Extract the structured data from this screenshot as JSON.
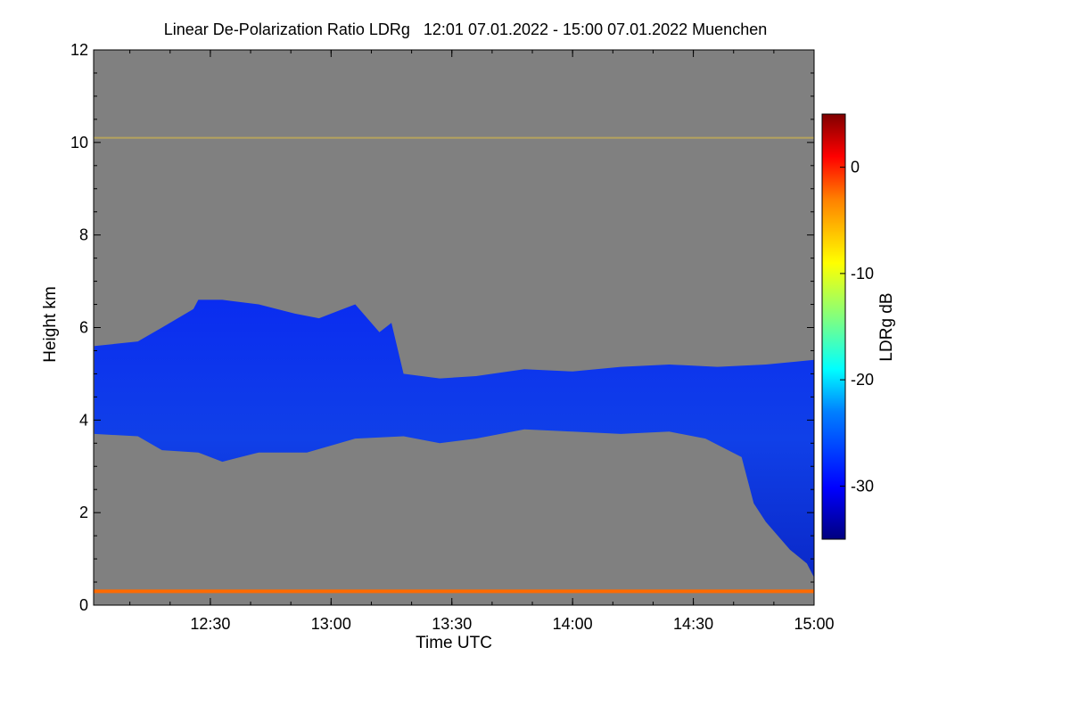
{
  "chart_data": {
    "type": "heatmap",
    "title": "Linear De-Polarization Ratio LDRg   12:01 07.01.2022 - 15:00 07.01.2022 Muenchen",
    "xlabel": "Time UTC",
    "ylabel": "Height km",
    "x_range_hours": [
      12.0167,
      15.0
    ],
    "ylim": [
      0,
      12
    ],
    "x_ticks": [
      {
        "hour": 12.5,
        "label": "12:30"
      },
      {
        "hour": 13.0,
        "label": "13:00"
      },
      {
        "hour": 13.5,
        "label": "13:30"
      },
      {
        "hour": 14.0,
        "label": "14:00"
      },
      {
        "hour": 14.5,
        "label": "14:30"
      },
      {
        "hour": 15.0,
        "label": "15:00"
      }
    ],
    "y_ticks": [
      {
        "value": 0,
        "label": "0"
      },
      {
        "value": 2,
        "label": "2"
      },
      {
        "value": 4,
        "label": "4"
      },
      {
        "value": 6,
        "label": "6"
      },
      {
        "value": 8,
        "label": "8"
      },
      {
        "value": 10,
        "label": "10"
      },
      {
        "value": 12,
        "label": "12"
      }
    ],
    "colorbar": {
      "label": "LDRg dB",
      "range": [
        -35,
        5
      ],
      "ticks": [
        {
          "value": 0,
          "label": "0"
        },
        {
          "value": -10,
          "label": "-10"
        },
        {
          "value": -20,
          "label": "-20"
        },
        {
          "value": -30,
          "label": "-30"
        }
      ]
    },
    "no_signal_color": "#808080",
    "cloud_layer": {
      "description_ldr_db": -29,
      "upper_profile": [
        [
          12.02,
          5.6
        ],
        [
          12.2,
          5.7
        ],
        [
          12.3,
          6.0
        ],
        [
          12.43,
          6.4
        ],
        [
          12.45,
          6.6
        ],
        [
          12.55,
          6.6
        ],
        [
          12.7,
          6.5
        ],
        [
          12.85,
          6.3
        ],
        [
          12.95,
          6.2
        ],
        [
          13.1,
          6.5
        ],
        [
          13.2,
          5.9
        ],
        [
          13.25,
          6.1
        ],
        [
          13.3,
          5.0
        ],
        [
          13.45,
          4.9
        ],
        [
          13.6,
          4.95
        ],
        [
          13.8,
          5.1
        ],
        [
          14.0,
          5.05
        ],
        [
          14.2,
          5.15
        ],
        [
          14.4,
          5.2
        ],
        [
          14.6,
          5.15
        ],
        [
          14.8,
          5.2
        ],
        [
          15.0,
          5.3
        ]
      ],
      "lower_profile": [
        [
          12.02,
          3.7
        ],
        [
          12.2,
          3.65
        ],
        [
          12.3,
          3.35
        ],
        [
          12.45,
          3.3
        ],
        [
          12.55,
          3.1
        ],
        [
          12.7,
          3.3
        ],
        [
          12.9,
          3.3
        ],
        [
          13.1,
          3.6
        ],
        [
          13.3,
          3.65
        ],
        [
          13.45,
          3.5
        ],
        [
          13.6,
          3.6
        ],
        [
          13.8,
          3.8
        ],
        [
          14.0,
          3.75
        ],
        [
          14.2,
          3.7
        ],
        [
          14.4,
          3.75
        ],
        [
          14.55,
          3.6
        ],
        [
          14.7,
          3.2
        ],
        [
          14.75,
          2.2
        ],
        [
          14.8,
          1.8
        ],
        [
          14.9,
          1.2
        ],
        [
          14.97,
          0.9
        ],
        [
          15.0,
          0.6
        ]
      ]
    },
    "ground_clutter_layer": {
      "height_km": 0.3,
      "description_ldr_db": -5
    },
    "sparse_layer": {
      "height_km": 10.1,
      "description_ldr_db": -8
    }
  }
}
